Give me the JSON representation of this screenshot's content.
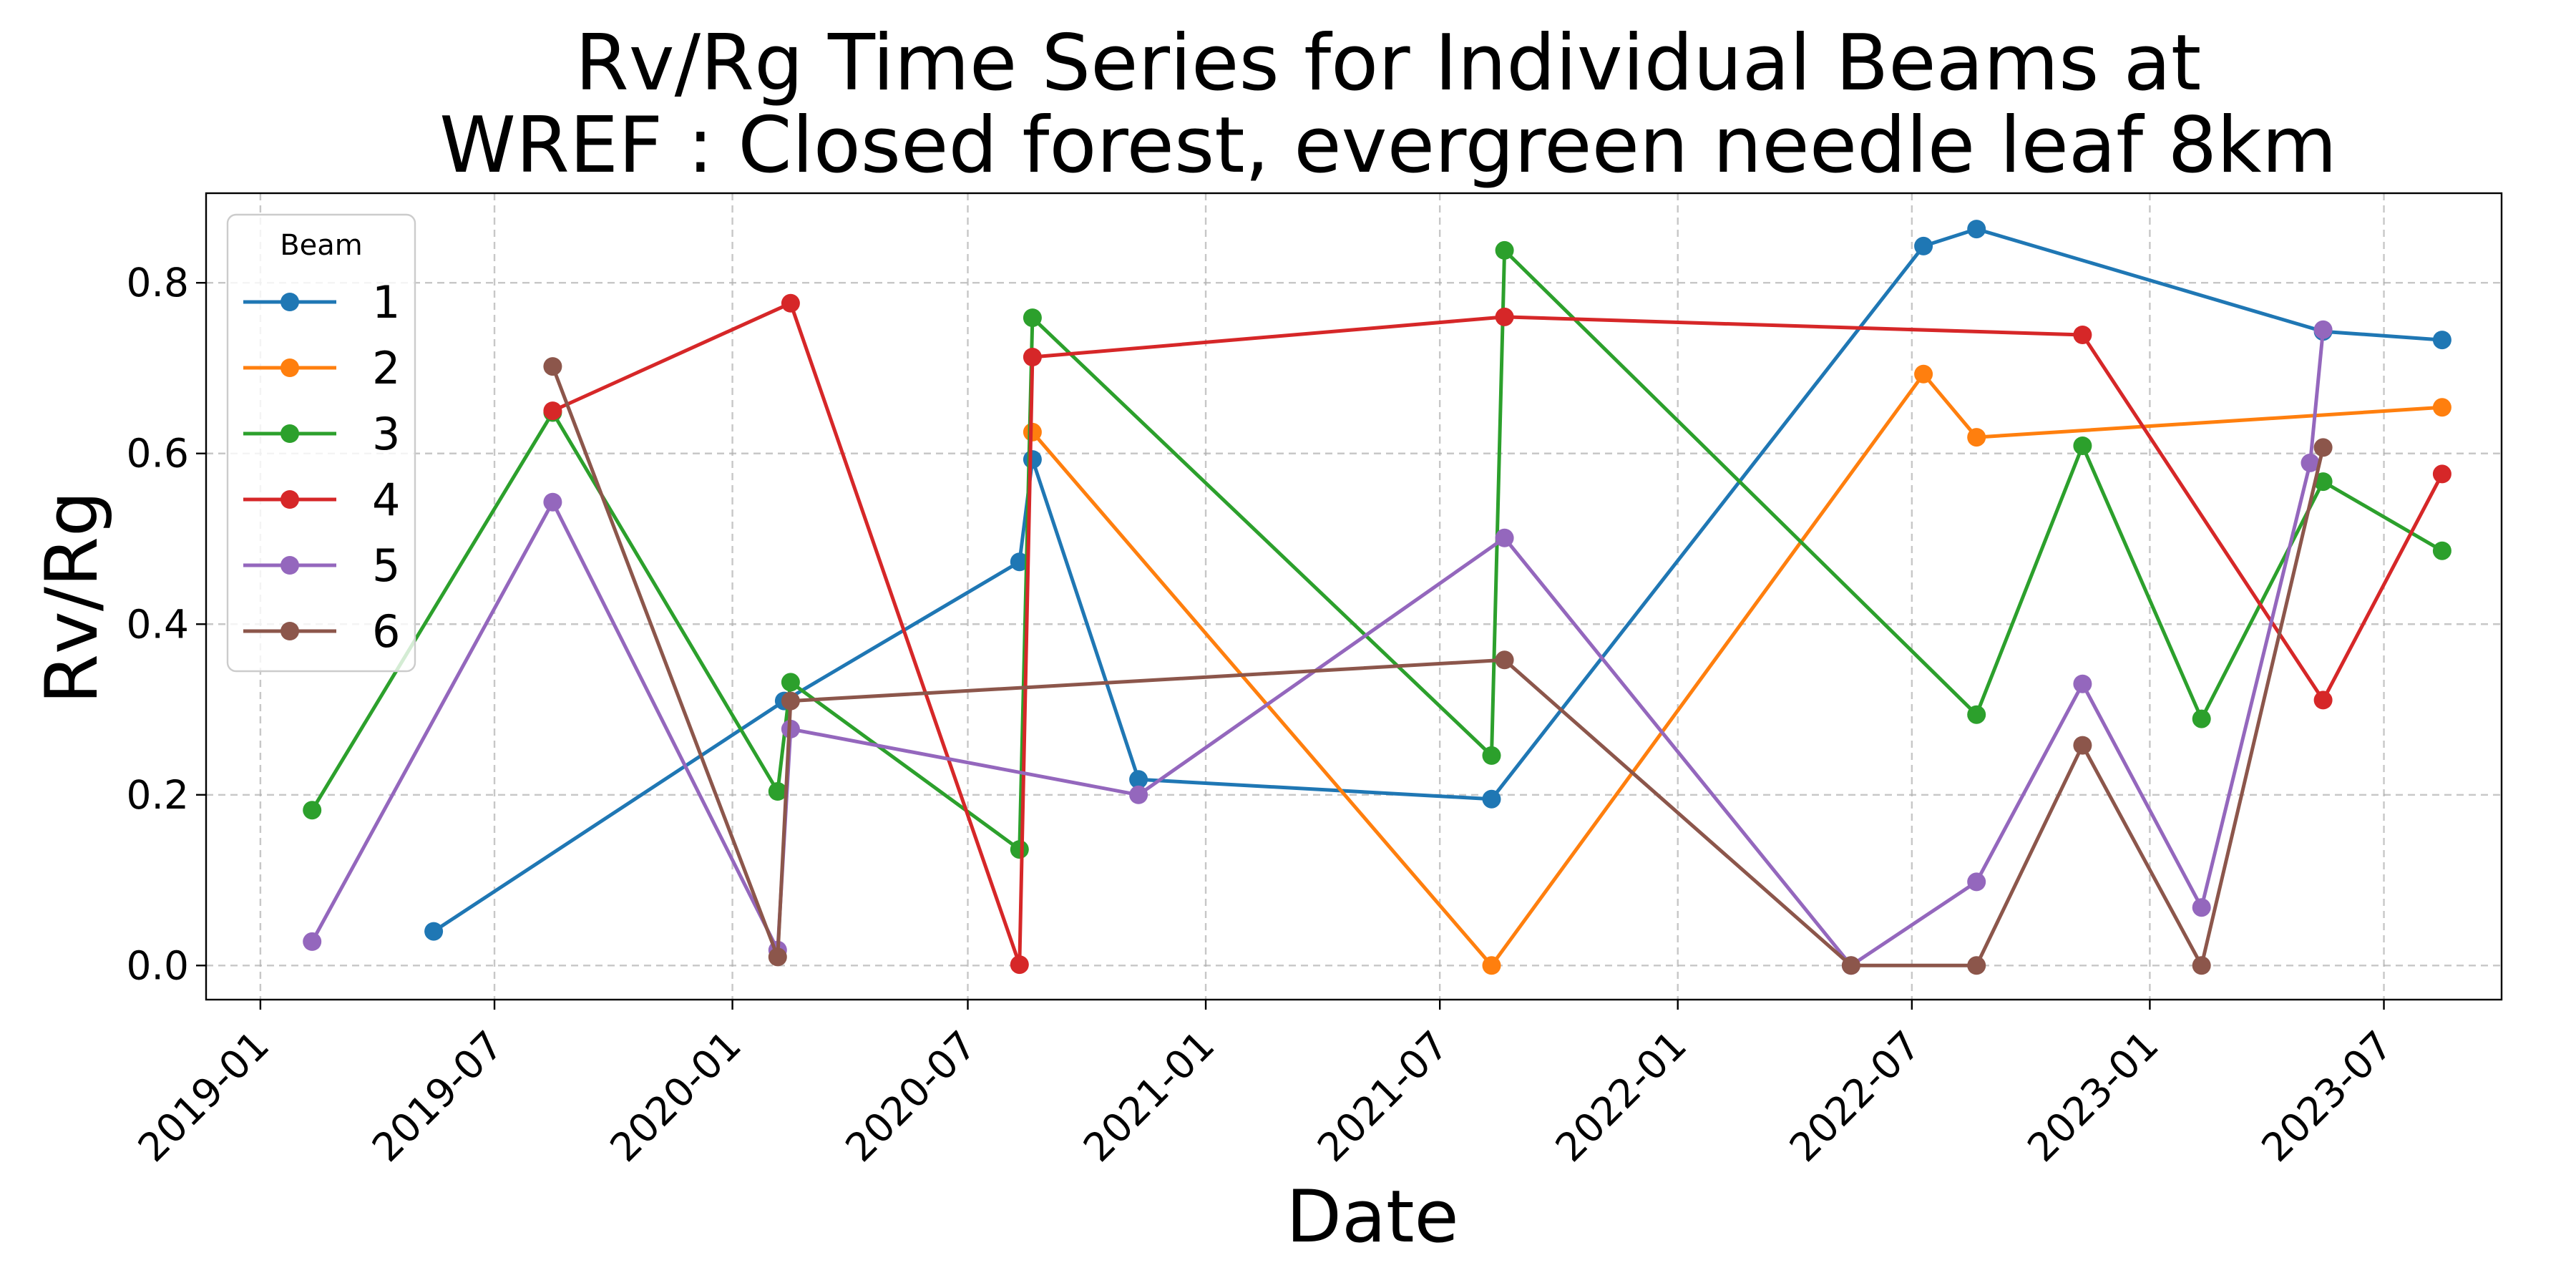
{
  "chart_data": {
    "type": "line",
    "title_lines": [
      "Rv/Rg Time Series for Individual Beams at",
      "WREF : Closed forest, evergreen needle leaf 8km"
    ],
    "xlabel": "Date",
    "ylabel": "Rv/Rg",
    "x_ticks": [
      "2019-01",
      "2019-07",
      "2020-01",
      "2020-07",
      "2021-01",
      "2021-07",
      "2022-01",
      "2022-07",
      "2023-01",
      "2023-07"
    ],
    "x_range": [
      "2018-11-20",
      "2023-09-30"
    ],
    "y_ticks": [
      "0.0",
      "0.2",
      "0.4",
      "0.6",
      "0.8"
    ],
    "ylim": [
      -0.04,
      0.905
    ],
    "grid": true,
    "legend": {
      "title": "Beam",
      "position": "upper-left"
    },
    "series": [
      {
        "name": "1",
        "color": "#1f77b4",
        "points": [
          [
            "2019-05-15",
            0.04
          ],
          [
            "2020-02-10",
            0.31
          ],
          [
            "2020-08-10",
            0.473
          ],
          [
            "2020-08-20",
            0.593
          ],
          [
            "2020-11-10",
            0.218
          ],
          [
            "2021-08-10",
            0.195
          ],
          [
            "2022-07-10",
            0.843
          ],
          [
            "2022-08-20",
            0.863
          ],
          [
            "2023-05-15",
            0.743
          ],
          [
            "2023-08-15",
            0.733
          ]
        ]
      },
      {
        "name": "2",
        "color": "#ff7f0e",
        "points": [
          [
            "2020-08-20",
            0.625
          ],
          [
            "2021-08-10",
            0.0
          ],
          [
            "2022-07-10",
            0.693
          ],
          [
            "2022-08-20",
            0.619
          ],
          [
            "2023-08-15",
            0.654
          ]
        ]
      },
      {
        "name": "3",
        "color": "#2ca02c",
        "points": [
          [
            "2019-02-10",
            0.182
          ],
          [
            "2019-08-15",
            0.648
          ],
          [
            "2020-02-05",
            0.204
          ],
          [
            "2020-02-15",
            0.332
          ],
          [
            "2020-08-10",
            0.136
          ],
          [
            "2020-08-20",
            0.759
          ],
          [
            "2021-08-10",
            0.246
          ],
          [
            "2021-08-20",
            0.838
          ],
          [
            "2022-08-20",
            0.294
          ],
          [
            "2022-11-10",
            0.609
          ],
          [
            "2023-02-10",
            0.289
          ],
          [
            "2023-05-15",
            0.567
          ],
          [
            "2023-08-15",
            0.486
          ]
        ]
      },
      {
        "name": "4",
        "color": "#d62728",
        "points": [
          [
            "2019-08-15",
            0.65
          ],
          [
            "2020-02-15",
            0.776
          ],
          [
            "2020-08-10",
            0.001
          ],
          [
            "2020-08-20",
            0.713
          ],
          [
            "2021-08-20",
            0.76
          ],
          [
            "2022-11-10",
            0.739
          ],
          [
            "2023-05-15",
            0.311
          ],
          [
            "2023-08-15",
            0.576
          ]
        ]
      },
      {
        "name": "5",
        "color": "#9467bd",
        "points": [
          [
            "2019-02-10",
            0.028
          ],
          [
            "2019-08-15",
            0.543
          ],
          [
            "2020-02-05",
            0.018
          ],
          [
            "2020-02-15",
            0.277
          ],
          [
            "2020-11-10",
            0.2
          ],
          [
            "2021-08-20",
            0.501
          ],
          [
            "2022-05-15",
            0.0
          ],
          [
            "2022-08-20",
            0.098
          ],
          [
            "2022-11-10",
            0.33
          ],
          [
            "2023-02-10",
            0.068
          ],
          [
            "2023-05-05",
            0.589
          ],
          [
            "2023-05-15",
            0.745
          ]
        ]
      },
      {
        "name": "6",
        "color": "#8c564b",
        "points": [
          [
            "2019-08-15",
            0.702
          ],
          [
            "2020-02-05",
            0.01
          ],
          [
            "2020-02-15",
            0.31
          ],
          [
            "2021-08-20",
            0.358
          ],
          [
            "2022-05-15",
            0.0
          ],
          [
            "2022-08-20",
            0.0
          ],
          [
            "2022-11-10",
            0.258
          ],
          [
            "2023-02-10",
            0.0
          ],
          [
            "2023-05-15",
            0.607
          ]
        ]
      }
    ]
  }
}
